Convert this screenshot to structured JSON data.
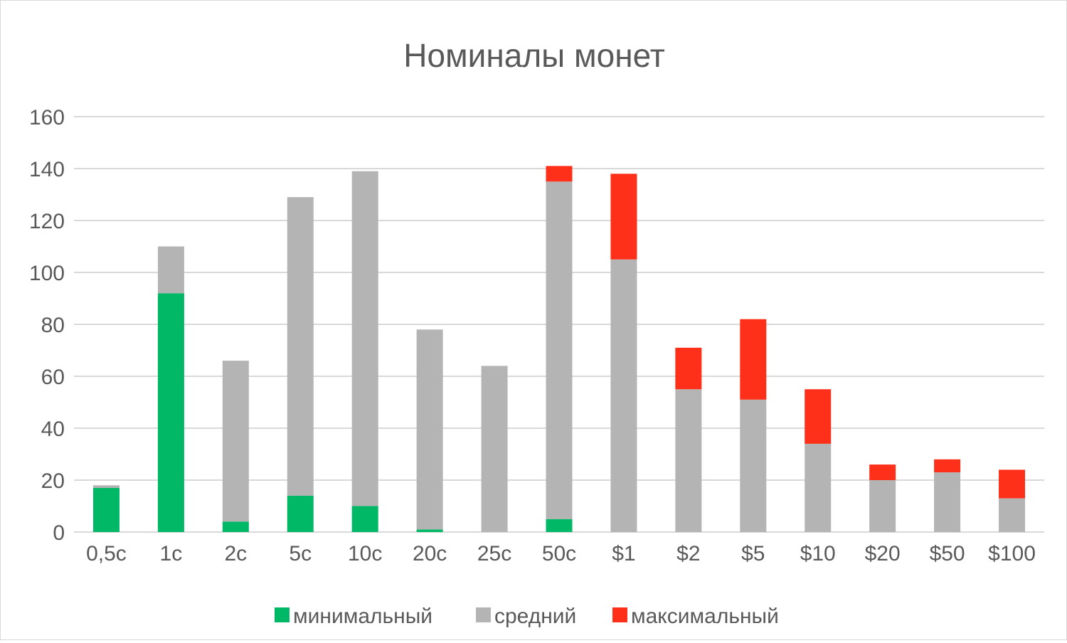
{
  "chart_data": {
    "type": "bar",
    "stacked": true,
    "title": "Номиналы монет",
    "xlabel": "",
    "ylabel": "",
    "ylim": [
      0,
      160
    ],
    "yticks": [
      "0",
      "20",
      "40",
      "60",
      "80",
      "100",
      "120",
      "140",
      "160"
    ],
    "grid": true,
    "legend_position": "bottom",
    "categories": [
      "0,5c",
      "1c",
      "2c",
      "5c",
      "10c",
      "20c",
      "25c",
      "50c",
      "$1",
      "$2",
      "$5",
      "$10",
      "$20",
      "$50",
      "$100"
    ],
    "series": [
      {
        "name": "минимальный",
        "color": "#00b866",
        "values": [
          17,
          92,
          4,
          14,
          10,
          1,
          0,
          5,
          0,
          0,
          0,
          0,
          0,
          0,
          0
        ]
      },
      {
        "name": "средний",
        "color": "#b4b4b4",
        "values": [
          1,
          18,
          62,
          115,
          129,
          77,
          64,
          130,
          105,
          55,
          51,
          34,
          20,
          23,
          13
        ]
      },
      {
        "name": "максимальный",
        "color": "#ff3019",
        "values": [
          0,
          0,
          0,
          0,
          0,
          0,
          0,
          6,
          33,
          16,
          31,
          21,
          6,
          5,
          11
        ]
      }
    ]
  }
}
